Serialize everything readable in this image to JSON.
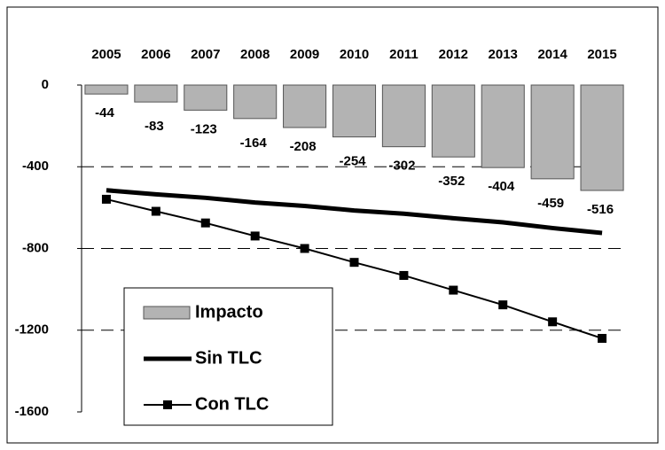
{
  "chart_data": {
    "type": "bar_line",
    "categories": [
      "2005",
      "2006",
      "2007",
      "2008",
      "2009",
      "2010",
      "2011",
      "2012",
      "2013",
      "2014",
      "2015"
    ],
    "series": [
      {
        "name": "Impacto",
        "type": "bar",
        "color": "#b3b3b3",
        "values": [
          -44,
          -83,
          -123,
          -164,
          -208,
          -254,
          -302,
          -352,
          -404,
          -459,
          -516
        ]
      },
      {
        "name": "Sin TLC",
        "type": "line",
        "color": "#000000",
        "values": [
          -515,
          -535,
          -552,
          -575,
          -592,
          -614,
          -630,
          -652,
          -672,
          -700,
          -724
        ]
      },
      {
        "name": "Con TLC",
        "type": "line",
        "marker": "square",
        "color": "#000000",
        "values": [
          -559,
          -618,
          -675,
          -739,
          -800,
          -868,
          -932,
          -1004,
          -1076,
          -1159,
          -1240
        ]
      }
    ],
    "ylim": [
      -1600,
      0
    ],
    "yticks": [
      0,
      -400,
      -800,
      -1200,
      -1600
    ],
    "grid": true,
    "legend": "lower left"
  }
}
